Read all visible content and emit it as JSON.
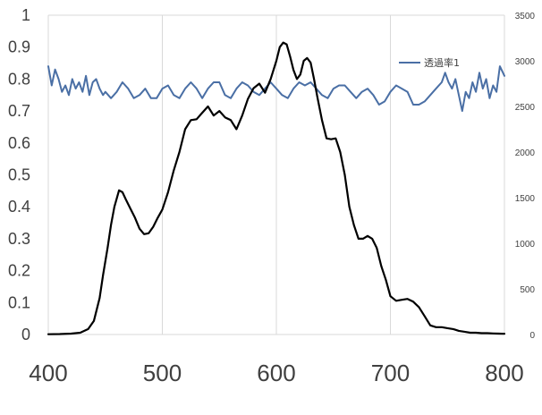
{
  "chart_data": {
    "type": "line",
    "x_range": [
      400,
      800
    ],
    "x_ticks": [
      400,
      500,
      600,
      700,
      800
    ],
    "x_tick_labels": [
      "400",
      "500",
      "600",
      "700",
      "800"
    ],
    "y_left_range": [
      0,
      1
    ],
    "y_left_ticks": [
      0,
      0.1,
      0.2,
      0.3,
      0.4,
      0.5,
      0.6,
      0.7,
      0.8,
      0.9,
      1
    ],
    "y_left_tick_labels": [
      "0",
      "0.1",
      "0.2",
      "0.3",
      "0.4",
      "0.5",
      "0.6",
      "0.7",
      "0.8",
      "0.9",
      "1"
    ],
    "y_right_range": [
      0,
      3500
    ],
    "y_right_ticks": [
      0,
      500,
      1000,
      1500,
      2000,
      2500,
      3000,
      3500
    ],
    "y_right_tick_labels": [
      "0",
      "500",
      "1000",
      "1500",
      "2000",
      "2500",
      "3000",
      "3500"
    ],
    "grid": "vertical",
    "legend_position": "top-right",
    "series": [
      {
        "name": "透過率1",
        "axis": "left",
        "color": "#4a6fa5",
        "x": [
          400,
          403,
          406,
          409,
          412,
          415,
          418,
          421,
          424,
          427,
          430,
          433,
          436,
          439,
          442,
          445,
          448,
          450,
          455,
          460,
          465,
          470,
          475,
          480,
          485,
          490,
          495,
          500,
          505,
          510,
          515,
          520,
          525,
          530,
          535,
          540,
          545,
          550,
          555,
          560,
          565,
          570,
          575,
          580,
          585,
          590,
          595,
          600,
          605,
          610,
          615,
          620,
          625,
          630,
          635,
          640,
          645,
          650,
          655,
          660,
          665,
          670,
          675,
          680,
          685,
          690,
          695,
          700,
          705,
          710,
          715,
          720,
          725,
          730,
          735,
          740,
          745,
          748,
          751,
          754,
          757,
          760,
          763,
          766,
          769,
          772,
          775,
          778,
          781,
          784,
          787,
          790,
          793,
          796,
          800
        ],
        "y": [
          0.84,
          0.78,
          0.83,
          0.8,
          0.76,
          0.78,
          0.75,
          0.8,
          0.77,
          0.79,
          0.76,
          0.81,
          0.75,
          0.79,
          0.8,
          0.77,
          0.75,
          0.76,
          0.74,
          0.76,
          0.79,
          0.77,
          0.74,
          0.75,
          0.77,
          0.74,
          0.74,
          0.77,
          0.78,
          0.75,
          0.74,
          0.77,
          0.79,
          0.77,
          0.74,
          0.77,
          0.79,
          0.79,
          0.75,
          0.74,
          0.77,
          0.79,
          0.78,
          0.76,
          0.75,
          0.77,
          0.79,
          0.77,
          0.75,
          0.74,
          0.77,
          0.79,
          0.78,
          0.79,
          0.77,
          0.75,
          0.74,
          0.77,
          0.78,
          0.78,
          0.76,
          0.74,
          0.76,
          0.77,
          0.75,
          0.72,
          0.73,
          0.76,
          0.78,
          0.77,
          0.76,
          0.72,
          0.72,
          0.73,
          0.75,
          0.77,
          0.79,
          0.82,
          0.79,
          0.77,
          0.8,
          0.75,
          0.7,
          0.76,
          0.74,
          0.79,
          0.76,
          0.82,
          0.77,
          0.8,
          0.74,
          0.78,
          0.76,
          0.84,
          0.81
        ]
      },
      {
        "name": "",
        "axis": "right",
        "color": "#000000",
        "x": [
          400,
          410,
          420,
          428,
          435,
          440,
          445,
          448,
          452,
          455,
          458,
          462,
          465,
          468,
          472,
          476,
          480,
          484,
          488,
          492,
          496,
          500,
          505,
          510,
          515,
          520,
          525,
          530,
          535,
          540,
          545,
          550,
          555,
          560,
          565,
          570,
          575,
          580,
          585,
          590,
          595,
          600,
          603,
          606,
          609,
          612,
          615,
          618,
          621,
          624,
          627,
          630,
          633,
          636,
          640,
          644,
          648,
          652,
          656,
          660,
          664,
          668,
          672,
          676,
          680,
          684,
          688,
          692,
          696,
          700,
          705,
          710,
          715,
          720,
          725,
          730,
          735,
          740,
          745,
          750,
          755,
          760,
          765,
          770,
          775,
          780,
          785,
          790,
          795,
          800
        ],
        "y": [
          3,
          5,
          10,
          20,
          60,
          150,
          400,
          650,
          950,
          1200,
          1400,
          1580,
          1560,
          1480,
          1380,
          1280,
          1160,
          1100,
          1110,
          1180,
          1280,
          1370,
          1560,
          1800,
          2000,
          2250,
          2350,
          2360,
          2430,
          2500,
          2400,
          2450,
          2380,
          2350,
          2250,
          2400,
          2580,
          2700,
          2750,
          2650,
          2800,
          3000,
          3150,
          3200,
          3180,
          3050,
          2900,
          2800,
          2850,
          3000,
          3030,
          2980,
          2800,
          2600,
          2350,
          2150,
          2140,
          2150,
          2000,
          1750,
          1400,
          1200,
          1050,
          1050,
          1080,
          1050,
          950,
          750,
          600,
          420,
          370,
          380,
          390,
          360,
          300,
          200,
          100,
          80,
          80,
          70,
          60,
          40,
          30,
          20,
          20,
          15,
          15,
          12,
          10,
          8
        ]
      }
    ]
  }
}
